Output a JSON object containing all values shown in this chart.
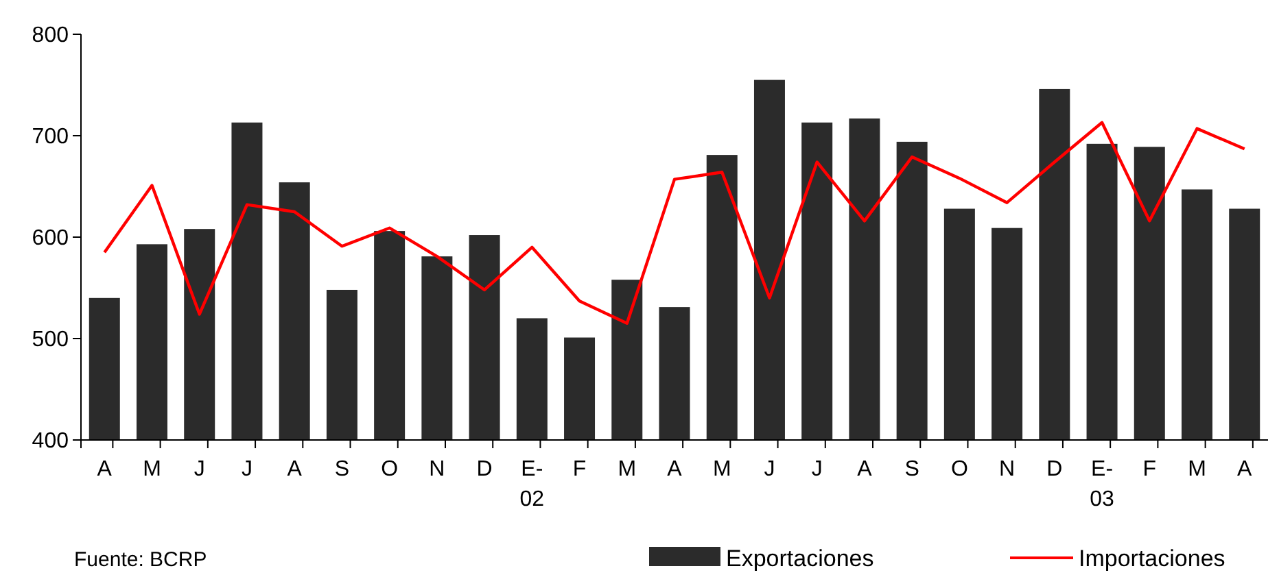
{
  "chart_data": {
    "type": "bar",
    "categories": [
      "A",
      "M",
      "J",
      "J",
      "A",
      "S",
      "O",
      "N",
      "D",
      "E-\n02",
      "F",
      "M",
      "A",
      "M",
      "J",
      "J",
      "A",
      "S",
      "O",
      "N",
      "D",
      "E-\n03",
      "F",
      "M",
      "A"
    ],
    "series": [
      {
        "name": "Exportaciones",
        "color": "#2b2b2b",
        "values": [
          540,
          593,
          608,
          713,
          654,
          548,
          606,
          581,
          602,
          520,
          501,
          558,
          531,
          681,
          755,
          713,
          717,
          694,
          628,
          609,
          746,
          692,
          689,
          647,
          628
        ]
      },
      {
        "name": "Importaciones",
        "type": "line",
        "color": "#ff0000",
        "values": [
          585,
          651,
          524,
          632,
          625,
          591,
          609,
          581,
          548,
          590,
          537,
          515,
          657,
          664,
          540,
          674,
          616,
          679,
          658,
          634,
          674,
          713,
          616,
          707,
          687
        ]
      }
    ],
    "ylim": [
      400,
      800
    ],
    "yticks": [
      400,
      500,
      600,
      700,
      800
    ],
    "grid": false,
    "legend": "bottom",
    "marker": "none",
    "line_style": "solid",
    "annotations": [
      "Fuente: BCRP"
    ]
  }
}
